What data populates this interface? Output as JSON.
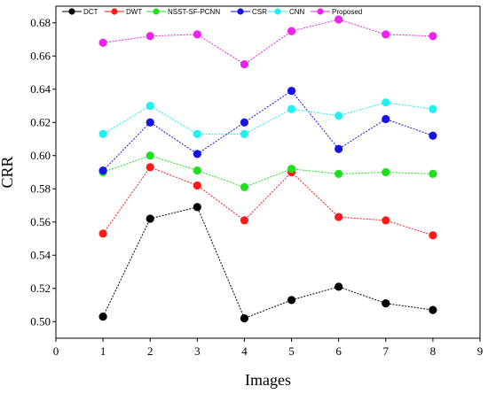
{
  "chart_data": {
    "type": "line",
    "title": "",
    "xlabel": "Images",
    "ylabel": "CRR",
    "xlim": [
      0,
      9
    ],
    "ylim": [
      0.49,
      0.69
    ],
    "xticks": [
      0,
      1,
      2,
      3,
      4,
      5,
      6,
      7,
      8,
      9
    ],
    "yticks": [
      0.5,
      0.52,
      0.54,
      0.56,
      0.58,
      0.6,
      0.62,
      0.64,
      0.66,
      0.68
    ],
    "grid": false,
    "legend_position": "top",
    "x": [
      1,
      2,
      3,
      4,
      5,
      6,
      7,
      8
    ],
    "series": [
      {
        "name": "DCT",
        "color": "#000000",
        "values": [
          0.503,
          0.562,
          0.569,
          0.502,
          0.513,
          0.521,
          0.511,
          0.507
        ]
      },
      {
        "name": "DWT",
        "color": "#ff1a1a",
        "values": [
          0.553,
          0.593,
          0.582,
          0.561,
          0.59,
          0.563,
          0.561,
          0.552
        ]
      },
      {
        "name": "NSST-SF-PCNN",
        "color": "#1ee01e",
        "values": [
          0.59,
          0.6,
          0.591,
          0.581,
          0.592,
          0.589,
          0.59,
          0.589
        ]
      },
      {
        "name": "CSR",
        "color": "#1414e6",
        "values": [
          0.591,
          0.62,
          0.601,
          0.62,
          0.639,
          0.604,
          0.622,
          0.612
        ]
      },
      {
        "name": "CNN",
        "color": "#22f0f0",
        "values": [
          0.613,
          0.63,
          0.613,
          0.613,
          0.628,
          0.624,
          0.632,
          0.628
        ]
      },
      {
        "name": "Proposed",
        "color": "#ee22ee",
        "values": [
          0.668,
          0.672,
          0.673,
          0.655,
          0.675,
          0.682,
          0.673,
          0.672
        ]
      }
    ]
  }
}
